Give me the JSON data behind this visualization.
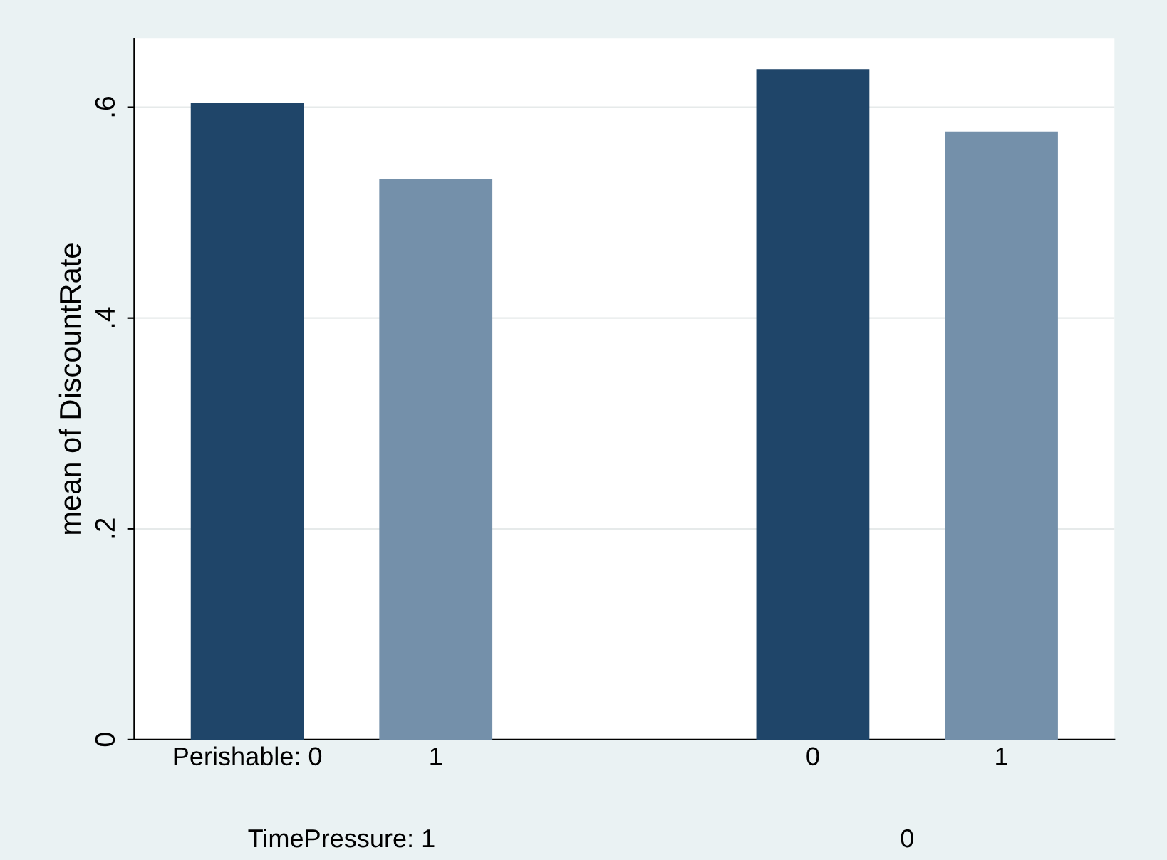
{
  "chart_data": {
    "type": "bar",
    "ylabel": "mean of DiscountRate",
    "categories": [
      "Perishable: 0",
      "1",
      null,
      "0",
      "1"
    ],
    "values": [
      0.604,
      0.532,
      null,
      0.636,
      0.577
    ],
    "colors": [
      "#1f4569",
      "#7490aa",
      "#ffffff",
      "#1f4569",
      "#7490aa"
    ],
    "ylim": [
      0,
      0.665
    ],
    "yticks": [
      {
        "value": 0,
        "label": "0"
      },
      {
        "value": 0.2,
        "label": ".2"
      },
      {
        "value": 0.4,
        "label": ".4"
      },
      {
        "value": 0.6,
        "label": ".6"
      }
    ],
    "grid": "y",
    "legend": false,
    "annotations": [
      "TimePressure: 1",
      "0"
    ]
  }
}
